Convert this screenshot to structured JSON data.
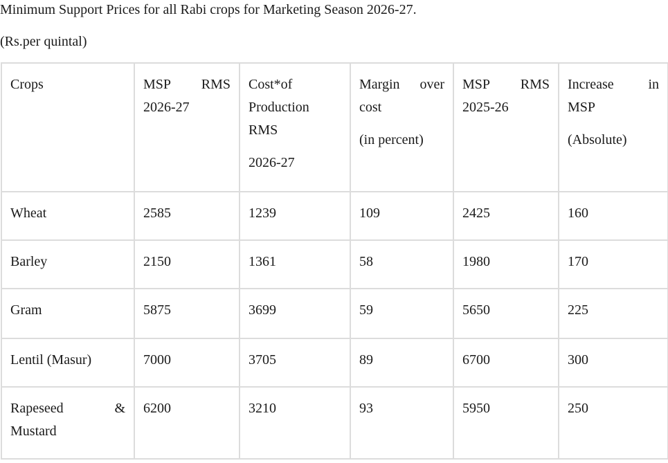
{
  "document": {
    "title": "Minimum Support Prices for all Rabi crops for Marketing Season 2026-27.",
    "unit": "(Rs.per quintal)"
  },
  "table": {
    "headers": [
      {
        "line1": "MSP RMS 2026-27",
        "line2": ""
      },
      {
        "line1": "Cost*of Production RMS",
        "line2": "2026-27"
      },
      {
        "line1": "Margin over cost",
        "line2": "(in percent)"
      },
      {
        "line1": "MSP RMS 2025-26",
        "line2": ""
      },
      {
        "line1": "Increase in MSP",
        "line2": "(Absolute)"
      }
    ],
    "first_header": "Crops",
    "rows": [
      {
        "crop": "Wheat",
        "msp_2026_27": "2585",
        "cost": "1239",
        "margin": "109",
        "msp_2025_26": "2425",
        "increase": "160"
      },
      {
        "crop": "Barley",
        "msp_2026_27": "2150",
        "cost": "1361",
        "margin": "58",
        "msp_2025_26": "1980",
        "increase": "170"
      },
      {
        "crop": "Gram",
        "msp_2026_27": "5875",
        "cost": "3699",
        "margin": "59",
        "msp_2025_26": "5650",
        "increase": "225"
      },
      {
        "crop": "Lentil (Masur)",
        "msp_2026_27": "7000",
        "cost": "3705",
        "margin": "89",
        "msp_2025_26": "6700",
        "increase": "300"
      },
      {
        "crop": "Rapeseed & Mustard",
        "msp_2026_27": "6200",
        "cost": "3210",
        "margin": "93",
        "msp_2025_26": "5950",
        "increase": "250"
      }
    ]
  }
}
